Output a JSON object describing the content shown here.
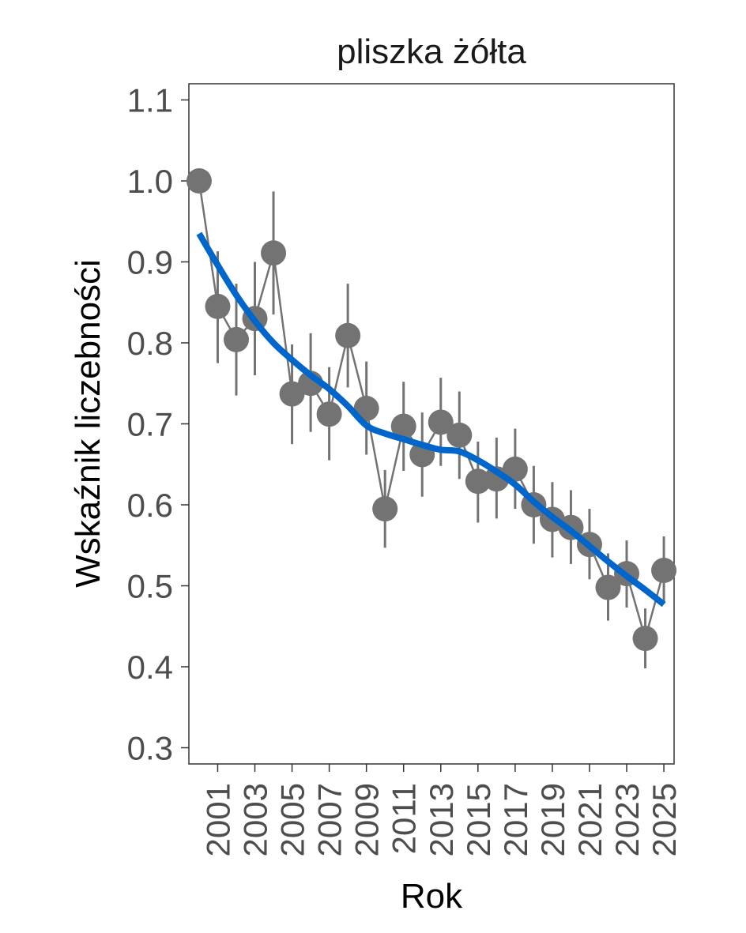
{
  "chart_data": {
    "type": "line",
    "title": "pliszka żółta",
    "xlabel": "Rok",
    "ylabel": "Wskaźnik liczebności",
    "xlim": [
      1999.45,
      2025.55
    ],
    "ylim": [
      0.28,
      1.12
    ],
    "y_ticks": [
      0.3,
      0.4,
      0.5,
      0.6,
      0.7,
      0.8,
      0.9,
      1.0,
      1.1
    ],
    "y_tick_labels": [
      "0.3",
      "0.4",
      "0.5",
      "0.6",
      "0.7",
      "0.8",
      "0.9",
      "1.0",
      "1.1"
    ],
    "x_ticks": [
      2001,
      2003,
      2005,
      2007,
      2009,
      2011,
      2013,
      2015,
      2017,
      2019,
      2021,
      2023,
      2025
    ],
    "x_tick_labels": [
      "2001",
      "2003",
      "2005",
      "2007",
      "2009",
      "2011",
      "2013",
      "2015",
      "2017",
      "2019",
      "2021",
      "2023",
      "2025"
    ],
    "grid": false,
    "series": [
      {
        "role": "index",
        "color": "#737373",
        "x": [
          2000,
          2001,
          2002,
          2003,
          2004,
          2005,
          2006,
          2007,
          2008,
          2009,
          2010,
          2011,
          2012,
          2013,
          2014,
          2015,
          2016,
          2017,
          2018,
          2019,
          2020,
          2021,
          2022,
          2023,
          2024,
          2025
        ],
        "y": [
          1.0,
          0.845,
          0.804,
          0.83,
          0.911,
          0.737,
          0.75,
          0.712,
          0.809,
          0.719,
          0.595,
          0.697,
          0.662,
          0.702,
          0.686,
          0.629,
          0.632,
          0.644,
          0.6,
          0.582,
          0.572,
          0.551,
          0.498,
          0.515,
          0.435,
          0.519
        ],
        "lower": [
          null,
          0.775,
          0.735,
          0.76,
          0.835,
          0.675,
          0.69,
          0.655,
          0.745,
          0.662,
          0.547,
          0.642,
          0.61,
          0.648,
          0.632,
          0.578,
          0.583,
          0.595,
          0.552,
          0.535,
          0.527,
          0.508,
          0.457,
          0.473,
          0.398,
          0.478
        ],
        "upper": [
          null,
          0.913,
          0.873,
          0.9,
          0.987,
          0.798,
          0.812,
          0.77,
          0.873,
          0.777,
          0.643,
          0.752,
          0.714,
          0.757,
          0.74,
          0.678,
          0.683,
          0.694,
          0.648,
          0.628,
          0.618,
          0.595,
          0.54,
          0.556,
          0.472,
          0.561
        ]
      },
      {
        "role": "trend",
        "color": "#0066cc",
        "x": [
          2000,
          2001,
          2002,
          2003,
          2004,
          2005,
          2006,
          2007,
          2008,
          2009,
          2010,
          2011,
          2012,
          2013,
          2014,
          2015,
          2016,
          2017,
          2018,
          2019,
          2020,
          2021,
          2022,
          2023,
          2024,
          2025
        ],
        "y": [
          0.935,
          0.896,
          0.859,
          0.827,
          0.8,
          0.779,
          0.76,
          0.743,
          0.722,
          0.698,
          0.688,
          0.681,
          0.674,
          0.668,
          0.666,
          0.655,
          0.641,
          0.625,
          0.604,
          0.585,
          0.568,
          0.549,
          0.53,
          0.512,
          0.495,
          0.477
        ]
      }
    ]
  }
}
